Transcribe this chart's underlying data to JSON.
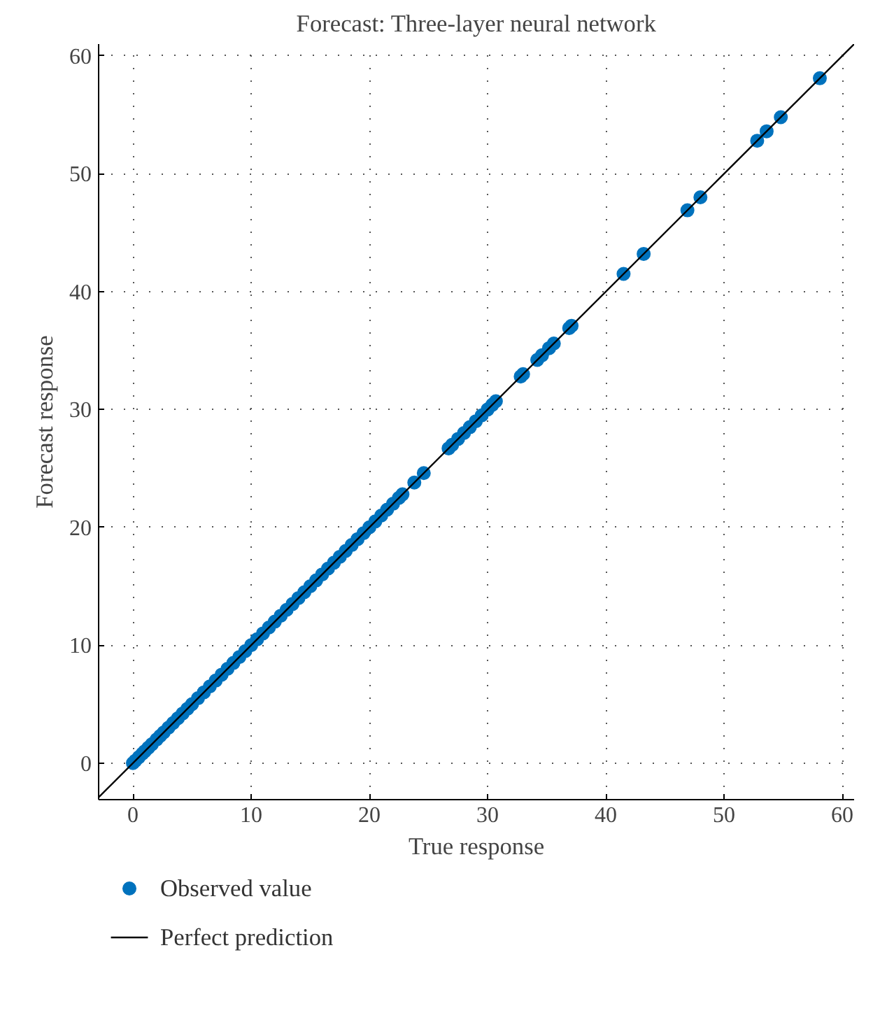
{
  "chart_data": {
    "type": "scatter",
    "title": "Forecast: Three-layer neural network",
    "xlabel": "True response",
    "ylabel": "Forecast response",
    "xlim": [
      -2.9,
      61
    ],
    "ylim": [
      -3.1,
      61
    ],
    "xticks": [
      0,
      10,
      20,
      30,
      40,
      50,
      60
    ],
    "yticks": [
      0,
      10,
      20,
      30,
      40,
      50,
      60
    ],
    "grid": true,
    "legend": "bottom",
    "series": [
      {
        "name": "Observed value",
        "color": "#0072bd",
        "marker": "circle",
        "x": [
          0,
          0.2,
          0.5,
          0.8,
          1,
          1.3,
          1.6,
          2,
          2.3,
          2.6,
          3,
          3.4,
          3.8,
          4.2,
          4.6,
          5,
          5.5,
          6,
          6.5,
          7,
          7.5,
          8,
          8.5,
          9,
          9.5,
          10,
          10.5,
          11,
          11.5,
          12,
          12.5,
          13,
          13.5,
          14,
          14.5,
          15,
          15.5,
          16,
          16.5,
          17,
          17.5,
          18,
          18.5,
          19,
          19.5,
          20,
          20.5,
          21,
          21.5,
          22,
          22.5,
          22.8,
          23.8,
          24.6,
          26.7,
          27,
          27.5,
          28,
          28.5,
          29,
          29.5,
          30,
          30.4,
          30.7,
          32.8,
          33,
          34.2,
          34.6,
          35.2,
          35.6,
          36.9,
          37.1,
          41.5,
          43.2,
          46.9,
          48,
          52.8,
          53.6,
          54.8,
          58.1
        ],
        "values": [
          0,
          0.2,
          0.5,
          0.8,
          1,
          1.3,
          1.6,
          2,
          2.3,
          2.6,
          3,
          3.4,
          3.8,
          4.2,
          4.6,
          5,
          5.5,
          6,
          6.5,
          7,
          7.5,
          8,
          8.5,
          9,
          9.5,
          10,
          10.5,
          11,
          11.5,
          12,
          12.5,
          13,
          13.5,
          14,
          14.5,
          15,
          15.5,
          16,
          16.5,
          17,
          17.5,
          18,
          18.5,
          19,
          19.5,
          20,
          20.5,
          21,
          21.5,
          22,
          22.5,
          22.8,
          23.8,
          24.6,
          26.7,
          27,
          27.5,
          28,
          28.5,
          29,
          29.5,
          30,
          30.4,
          30.7,
          32.8,
          33,
          34.2,
          34.6,
          35.2,
          35.6,
          36.9,
          37.1,
          41.5,
          43.2,
          46.9,
          48,
          52.8,
          53.6,
          54.8,
          58.1
        ]
      },
      {
        "name": "Perfect prediction",
        "color": "#000000",
        "type": "line",
        "x": [
          -2.9,
          61
        ],
        "values": [
          -2.9,
          61
        ]
      }
    ]
  }
}
